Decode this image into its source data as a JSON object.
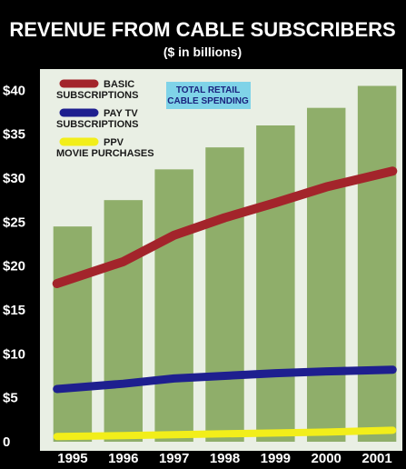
{
  "chart_data": {
    "type": "bar",
    "title": "REVENUE FROM CABLE SUBSCRIBERS",
    "subtitle": "($ in billions)",
    "categories": [
      "1995",
      "1996",
      "1997",
      "1998",
      "1999",
      "2000",
      "2001"
    ],
    "y_ticks": [
      "0",
      "$5",
      "$10",
      "$15",
      "$20",
      "$25",
      "$30",
      "$35",
      "$40"
    ],
    "ylim": [
      0,
      42
    ],
    "grid": false,
    "series": [
      {
        "name": "TOTAL RETAIL CABLE SPENDING",
        "mark": "bar",
        "color": "#8fae6a",
        "values": [
          24.5,
          27.5,
          31,
          33.5,
          36,
          38,
          40.5
        ]
      },
      {
        "name": "BASIC SUBSCRIPTIONS",
        "mark": "line",
        "color": "#a3242b",
        "values": [
          18,
          20.5,
          23.5,
          25.5,
          27.2,
          29,
          30.8
        ]
      },
      {
        "name": "PAY TV SUBSCRIPTIONS",
        "mark": "line",
        "color": "#1e1f8f",
        "values": [
          6,
          6.6,
          7.2,
          7.5,
          7.8,
          8,
          8.2
        ]
      },
      {
        "name": "PPV MOVIE PURCHASES",
        "mark": "line",
        "color": "#f2ee1a",
        "values": [
          0.6,
          0.7,
          0.8,
          0.9,
          1.0,
          1.1,
          1.3
        ]
      }
    ],
    "legend": {
      "placement": "top-left",
      "items": [
        {
          "lines": [
            "BASIC",
            "SUBSCRIPTIONS"
          ],
          "series": 1
        },
        {
          "lines": [
            "PAY TV",
            "SUBSCRIPTIONS"
          ],
          "series": 2
        },
        {
          "lines": [
            "PPV",
            "MOVIE PURCHASES"
          ],
          "series": 3
        }
      ],
      "callout": [
        "TOTAL RETAIL",
        "CABLE SPENDING"
      ]
    }
  }
}
